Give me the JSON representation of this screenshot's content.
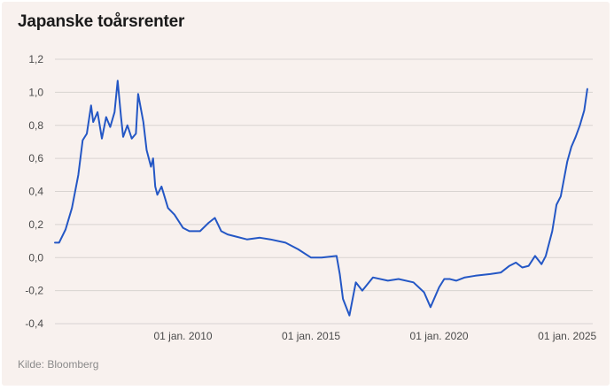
{
  "chart_data": {
    "type": "line",
    "title": "Japanske toårsrenter",
    "source": "Kilde: Bloomberg",
    "xlabel": "",
    "ylabel": "",
    "ylim": [
      -0.4,
      1.2
    ],
    "yticks": [
      1.2,
      1.0,
      0.8,
      0.6,
      0.4,
      0.2,
      0.0,
      -0.2,
      -0.4
    ],
    "ytick_labels": [
      "1,2",
      "1,0",
      "0,8",
      "0,6",
      "0,4",
      "0,2",
      "0,0",
      "-0,2",
      "-0,4"
    ],
    "xlim": [
      "2005-01-01",
      "2025-12-31"
    ],
    "xticks": [
      "2010-01-01",
      "2015-01-01",
      "2020-01-01",
      "2025-01-01"
    ],
    "xtick_labels": [
      "01 jan. 2010",
      "01 jan. 2015",
      "01 jan. 2020",
      "01 jan. 2025"
    ],
    "grid": "horizontal",
    "line_color": "#2457c5",
    "grid_color": "#d9d4d1",
    "series": [
      {
        "x": [
          "2005-01-01",
          "2005-03-01",
          "2005-06-01",
          "2005-09-01",
          "2005-12-01",
          "2006-02-01",
          "2006-04-01",
          "2006-06-01",
          "2006-07-01",
          "2006-09-01",
          "2006-11-01",
          "2007-01-01",
          "2007-03-01",
          "2007-05-01",
          "2007-06-15",
          "2007-08-01",
          "2007-09-01",
          "2007-11-01",
          "2008-01-01",
          "2008-03-01",
          "2008-04-01",
          "2008-06-15",
          "2008-08-01",
          "2008-10-01",
          "2008-11-01",
          "2008-12-01",
          "2009-01-01",
          "2009-03-01",
          "2009-06-01",
          "2009-09-01",
          "2010-01-01",
          "2010-04-01",
          "2010-07-01",
          "2010-09-01",
          "2011-01-01",
          "2011-04-01",
          "2011-07-01",
          "2011-10-01",
          "2012-01-01",
          "2012-07-01",
          "2013-01-01",
          "2013-06-01",
          "2014-01-01",
          "2014-07-01",
          "2015-01-01",
          "2015-06-01",
          "2016-01-01",
          "2016-02-15",
          "2016-04-01",
          "2016-07-01",
          "2016-10-01",
          "2017-01-01",
          "2017-06-01",
          "2018-01-01",
          "2018-06-01",
          "2019-01-01",
          "2019-06-01",
          "2019-09-01",
          "2020-01-01",
          "2020-03-15",
          "2020-06-01",
          "2020-09-01",
          "2021-01-01",
          "2021-06-01",
          "2022-01-01",
          "2022-06-01",
          "2022-10-01",
          "2023-01-01",
          "2023-04-01",
          "2023-07-01",
          "2023-10-01",
          "2024-01-01",
          "2024-03-01",
          "2024-06-01",
          "2024-08-01",
          "2024-10-01",
          "2025-01-01",
          "2025-03-01",
          "2025-05-01",
          "2025-07-01",
          "2025-09-01",
          "2025-10-15"
        ],
        "values": [
          0.09,
          0.09,
          0.17,
          0.3,
          0.5,
          0.71,
          0.75,
          0.92,
          0.82,
          0.88,
          0.72,
          0.85,
          0.79,
          0.88,
          1.07,
          0.85,
          0.73,
          0.8,
          0.72,
          0.75,
          0.99,
          0.82,
          0.65,
          0.55,
          0.6,
          0.43,
          0.38,
          0.43,
          0.3,
          0.26,
          0.18,
          0.16,
          0.16,
          0.16,
          0.21,
          0.24,
          0.16,
          0.14,
          0.13,
          0.11,
          0.12,
          0.11,
          0.09,
          0.05,
          0.0,
          0.0,
          0.01,
          -0.1,
          -0.25,
          -0.35,
          -0.15,
          -0.2,
          -0.12,
          -0.14,
          -0.13,
          -0.15,
          -0.21,
          -0.3,
          -0.18,
          -0.13,
          -0.13,
          -0.14,
          -0.12,
          -0.11,
          -0.1,
          -0.09,
          -0.05,
          -0.03,
          -0.06,
          -0.05,
          0.01,
          -0.04,
          0.01,
          0.16,
          0.32,
          0.37,
          0.58,
          0.67,
          0.73,
          0.8,
          0.89,
          1.02
        ]
      }
    ]
  }
}
